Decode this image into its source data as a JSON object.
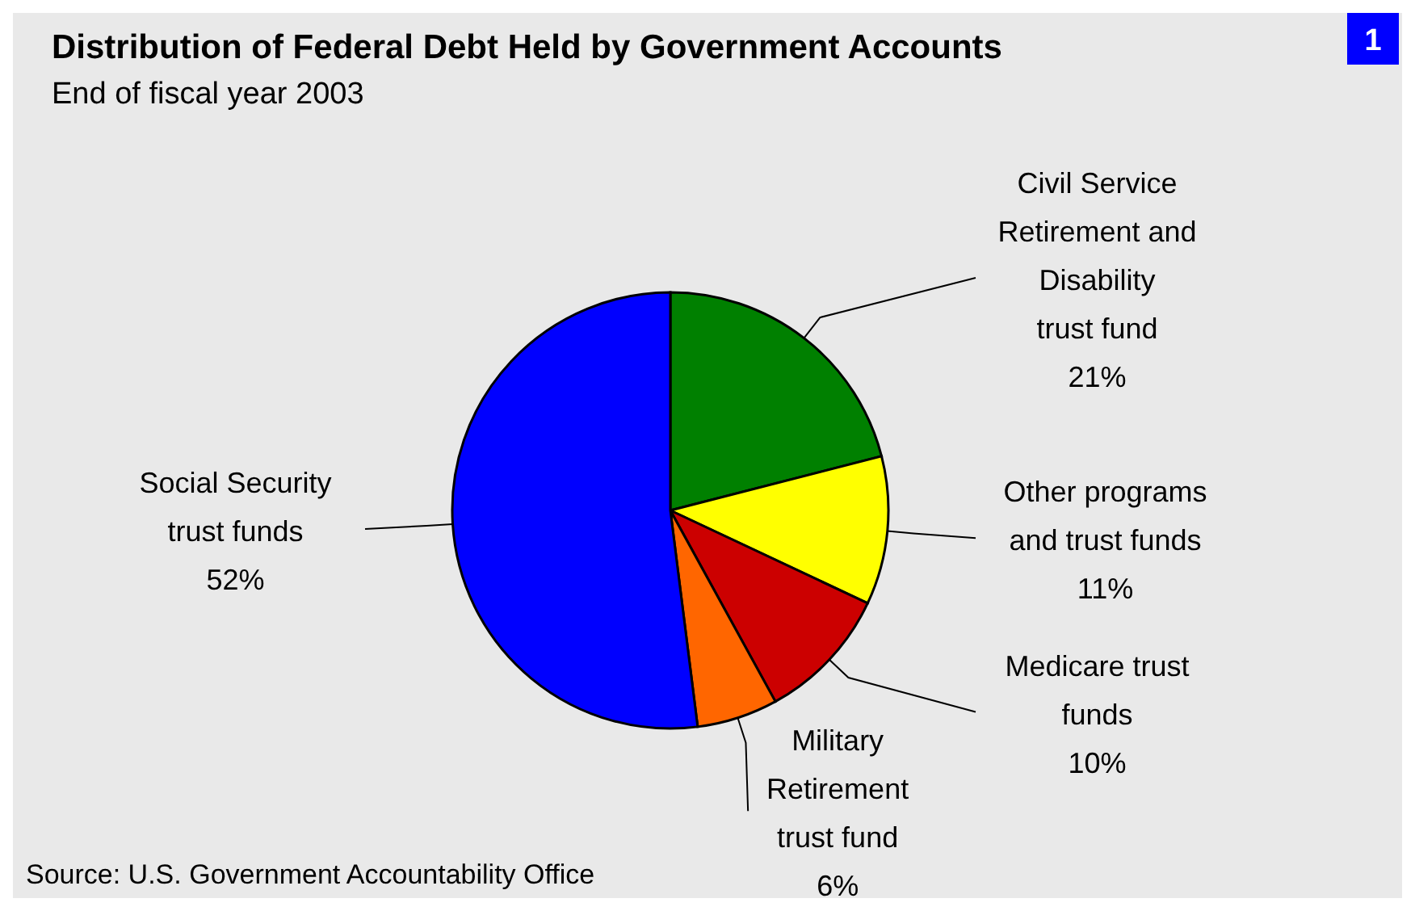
{
  "chart_data": {
    "type": "pie",
    "title": "Distribution of Federal Debt Held by Government Accounts",
    "subtitle": "End of fiscal year 2003",
    "categories": [
      "Civil Service Retirement and Disability trust fund",
      "Other programs and trust funds",
      "Medicare trust funds",
      "Military Retirement trust fund",
      "Social Security trust funds"
    ],
    "values": [
      21,
      11,
      10,
      6,
      52
    ],
    "value_labels": [
      "21%",
      "11%",
      "10%",
      "6%",
      "52%"
    ],
    "colors": [
      "#008000",
      "#ffff00",
      "#cc0000",
      "#ff6600",
      "#0000ff"
    ],
    "annotations": [
      "Source: U.S. Government Accountability Office",
      "1"
    ]
  }
}
